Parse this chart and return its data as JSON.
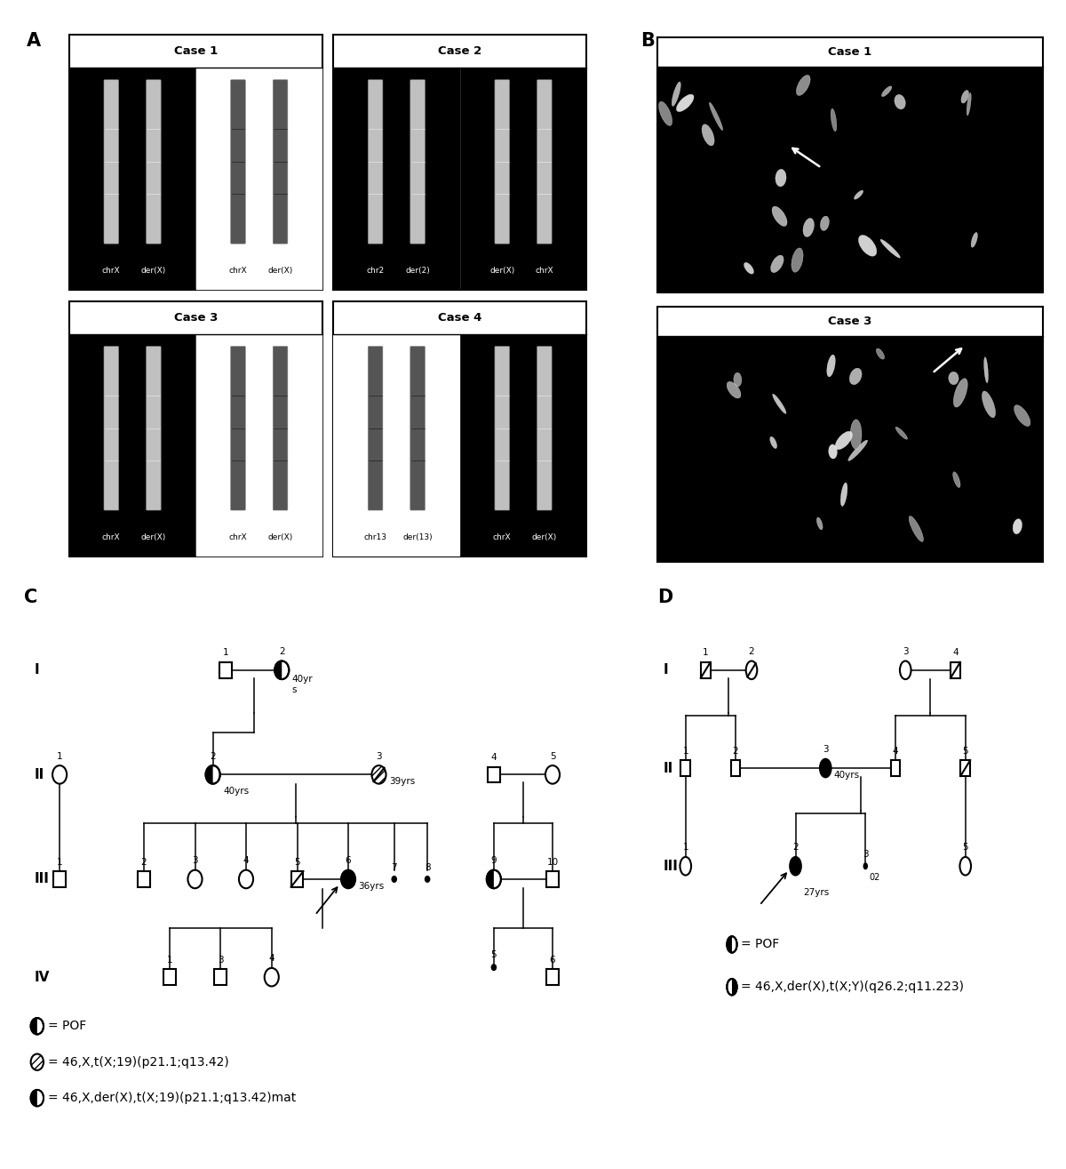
{
  "fig_width": 12.0,
  "fig_height": 13.15,
  "bg_color": "#ffffff",
  "legend_C": [
    "= POF",
    "= 46,X,t(X;19)(p21.1;q13.42)",
    "= 46,X,der(X),t(X;19)(p21.1;q13.42)mat"
  ],
  "legend_D": [
    "= POF",
    "= 46,X,der(X),t(X;Y)(q26.2;q11.223)"
  ],
  "legend_fontsize": 10
}
